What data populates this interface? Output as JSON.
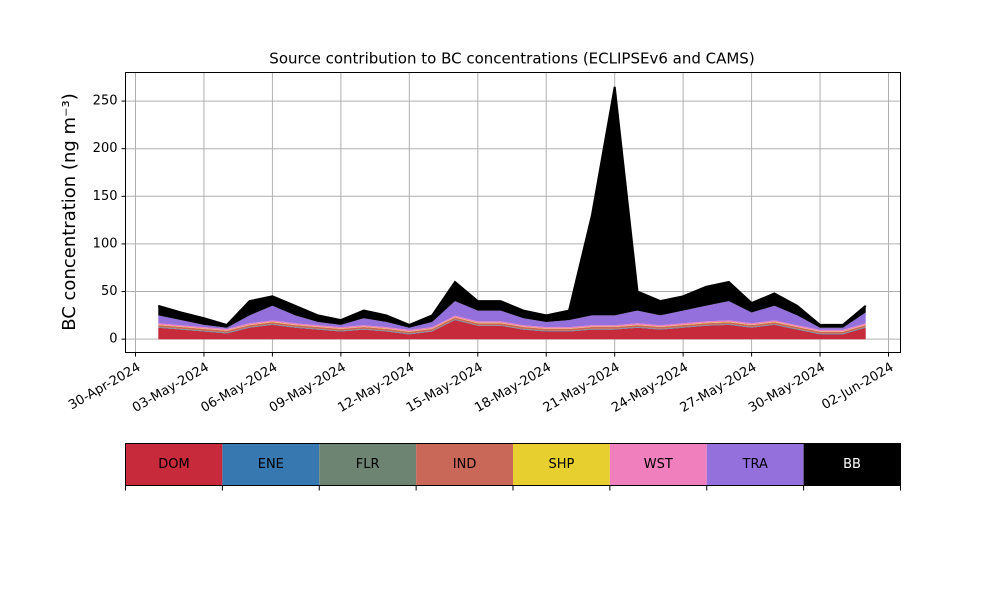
{
  "chart_data": {
    "type": "stacked-area",
    "title": "Source contribution to BC concentrations (ECLIPSEv6 and CAMS)",
    "ylabel": "BC concentration (ng m⁻³)",
    "x": [
      "2024-05-01",
      "2024-05-02",
      "2024-05-03",
      "2024-05-04",
      "2024-05-05",
      "2024-05-06",
      "2024-05-07",
      "2024-05-08",
      "2024-05-09",
      "2024-05-10",
      "2024-05-11",
      "2024-05-12",
      "2024-05-13",
      "2024-05-14",
      "2024-05-15",
      "2024-05-16",
      "2024-05-17",
      "2024-05-18",
      "2024-05-19",
      "2024-05-20",
      "2024-05-21",
      "2024-05-22",
      "2024-05-23",
      "2024-05-24",
      "2024-05-25",
      "2024-05-26",
      "2024-05-27",
      "2024-05-28",
      "2024-05-29",
      "2024-05-30",
      "2024-05-31",
      "2024-06-01"
    ],
    "series": [
      {
        "name": "DOM",
        "color": "#c72a3a",
        "values": [
          12,
          10,
          8,
          6,
          12,
          15,
          12,
          10,
          8,
          10,
          8,
          5,
          8,
          20,
          14,
          14,
          10,
          8,
          8,
          10,
          10,
          12,
          10,
          12,
          14,
          15,
          12,
          15,
          10,
          5,
          5,
          12
        ]
      },
      {
        "name": "ENE",
        "color": "#3878b0",
        "values": [
          0.5,
          0.5,
          0.5,
          0.5,
          0.5,
          0.5,
          0.5,
          0.5,
          0.5,
          0.5,
          0.5,
          0.5,
          0.5,
          0.5,
          0.5,
          0.5,
          0.5,
          0.5,
          0.5,
          0.5,
          0.5,
          0.5,
          0.5,
          0.5,
          0.5,
          0.5,
          0.5,
          0.5,
          0.5,
          0.5,
          0.5,
          0.5
        ]
      },
      {
        "name": "FLR",
        "color": "#6e8473",
        "values": [
          0.3,
          0.3,
          0.3,
          0.3,
          0.3,
          0.3,
          0.3,
          0.3,
          0.3,
          0.3,
          0.3,
          0.3,
          0.3,
          0.3,
          0.3,
          0.3,
          0.3,
          0.3,
          0.3,
          0.3,
          0.3,
          0.3,
          0.3,
          0.3,
          0.3,
          0.3,
          0.3,
          0.3,
          0.3,
          0.3,
          0.3,
          0.3
        ]
      },
      {
        "name": "IND",
        "color": "#c96758",
        "values": [
          2,
          2,
          2,
          2,
          2,
          2,
          2,
          2,
          2,
          2,
          2,
          2,
          2,
          2,
          2,
          2,
          2,
          2,
          2,
          2,
          2,
          2,
          2,
          2,
          2,
          2,
          2,
          2,
          2,
          2,
          2,
          2
        ]
      },
      {
        "name": "SHP",
        "color": "#e6cf2e",
        "values": [
          0.4,
          0.4,
          0.4,
          0.4,
          0.4,
          0.4,
          0.4,
          0.4,
          0.4,
          0.4,
          0.4,
          0.4,
          0.4,
          0.4,
          0.4,
          0.4,
          0.4,
          0.4,
          0.4,
          0.4,
          0.4,
          0.4,
          0.4,
          0.4,
          0.4,
          0.4,
          0.4,
          0.4,
          0.4,
          0.4,
          0.4,
          0.4
        ]
      },
      {
        "name": "WST",
        "color": "#ef80bd",
        "values": [
          1.5,
          1.5,
          1.5,
          1.5,
          1.5,
          1.5,
          1.5,
          1.5,
          1.5,
          1.5,
          1.5,
          1.5,
          1.5,
          1.5,
          1.5,
          1.5,
          1.5,
          1.5,
          1.5,
          1.5,
          1.5,
          1.5,
          1.5,
          1.5,
          1.5,
          1.5,
          1.5,
          1.5,
          1.5,
          1.5,
          1.5,
          1.5
        ]
      },
      {
        "name": "TRA",
        "color": "#9370db",
        "values": [
          8.3,
          5.3,
          2.3,
          1.3,
          8.3,
          15.3,
          8.3,
          3.3,
          2.3,
          7.3,
          5.3,
          2.3,
          5.3,
          15.3,
          11.3,
          11.3,
          7.3,
          5.3,
          7.3,
          10.3,
          10.3,
          13.3,
          10.3,
          13.3,
          16.3,
          20.3,
          11.3,
          15.3,
          10.3,
          2.3,
          2.3,
          11.3
        ]
      },
      {
        "name": "BB",
        "color": "#000000",
        "values": [
          10,
          8,
          7,
          3,
          15,
          10,
          10,
          7,
          5,
          8,
          7,
          3,
          7,
          20,
          10,
          10,
          8,
          7,
          10,
          105,
          240,
          20,
          15,
          15,
          20,
          20,
          10,
          13,
          10,
          3,
          3,
          7
        ]
      }
    ],
    "xlim": [
      "2024-04-30",
      "2024-06-02"
    ],
    "xticks": [
      {
        "value": "2024-04-30",
        "label": "30-Apr-2024"
      },
      {
        "value": "2024-05-03",
        "label": "03-May-2024"
      },
      {
        "value": "2024-05-06",
        "label": "06-May-2024"
      },
      {
        "value": "2024-05-09",
        "label": "09-May-2024"
      },
      {
        "value": "2024-05-12",
        "label": "12-May-2024"
      },
      {
        "value": "2024-05-15",
        "label": "15-May-2024"
      },
      {
        "value": "2024-05-18",
        "label": "18-May-2024"
      },
      {
        "value": "2024-05-21",
        "label": "21-May-2024"
      },
      {
        "value": "2024-05-24",
        "label": "24-May-2024"
      },
      {
        "value": "2024-05-27",
        "label": "27-May-2024"
      },
      {
        "value": "2024-05-30",
        "label": "30-May-2024"
      },
      {
        "value": "2024-06-02",
        "label": "02-Jun-2024"
      }
    ],
    "ylim": [
      -14,
      280
    ],
    "yticks": [
      0,
      50,
      100,
      150,
      200,
      250
    ],
    "grid": true
  }
}
